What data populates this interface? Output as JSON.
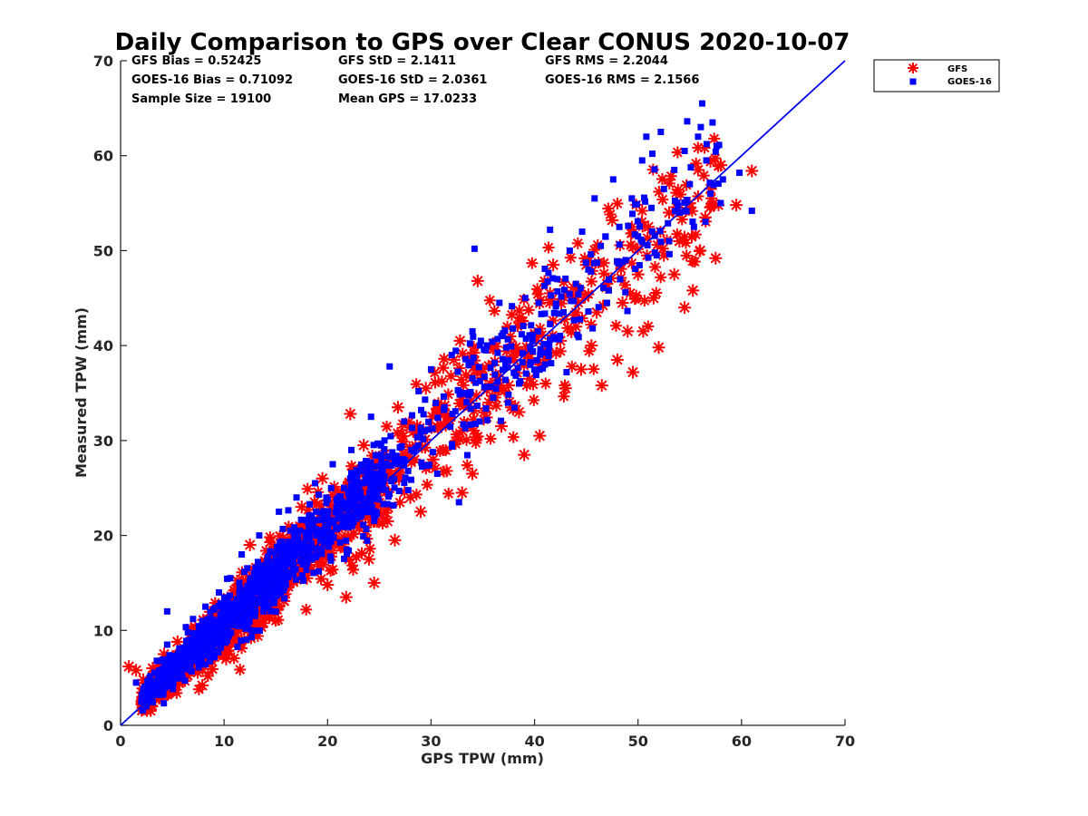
{
  "chart_data": {
    "type": "scatter",
    "title": "Daily Comparison to GPS over Clear CONUS 2020-10-07",
    "xlabel": "GPS TPW (mm)",
    "ylabel": "Measured TPW (mm)",
    "xlim": [
      0,
      70
    ],
    "ylim": [
      0,
      70
    ],
    "xticks": [
      "0",
      "10",
      "20",
      "30",
      "40",
      "50",
      "60",
      "70"
    ],
    "yticks": [
      "0",
      "10",
      "20",
      "30",
      "40",
      "50",
      "60",
      "70"
    ],
    "grid": false,
    "legend_position": "outside-top-right",
    "stats": {
      "gfs_bias": "GFS Bias = 0.52425",
      "goes_bias": "GOES-16 Bias = 0.71092",
      "sample_size": "Sample Size = 19100",
      "gfs_std": "GFS StD = 2.1411",
      "goes_std": "GOES-16 StD = 2.0361",
      "mean_gps": "Mean GPS = 17.0233",
      "gfs_rms": "GFS RMS = 2.2044",
      "goes_rms": "GOES-16 RMS = 2.1566"
    },
    "reference_line": {
      "name": "1:1 line",
      "x": [
        0,
        70
      ],
      "y": [
        0,
        70
      ],
      "color": "#0000ee"
    },
    "series": [
      {
        "name": "GFS",
        "marker": "asterisk",
        "color": "#ff0000",
        "points": [
          [
            0.8,
            6.2
          ],
          [
            1.5,
            5.8
          ],
          [
            2.2,
            4.8
          ],
          [
            2.5,
            3.2
          ],
          [
            3.1,
            6.0
          ],
          [
            3.8,
            4.1
          ],
          [
            4.2,
            7.5
          ],
          [
            5.0,
            5.2
          ],
          [
            5.5,
            8.8
          ],
          [
            6.1,
            6.8
          ],
          [
            6.8,
            10.2
          ],
          [
            7.2,
            8.0
          ],
          [
            7.9,
            4.2
          ],
          [
            8.5,
            9.1
          ],
          [
            9.0,
            11.5
          ],
          [
            9.8,
            10.0
          ],
          [
            10.2,
            7.0
          ],
          [
            10.5,
            12.8
          ],
          [
            11.0,
            14.2
          ],
          [
            11.8,
            10.8
          ],
          [
            12.5,
            19.0
          ],
          [
            12.8,
            15.0
          ],
          [
            13.5,
            12.2
          ],
          [
            14.0,
            16.8
          ],
          [
            14.6,
            14.0
          ],
          [
            15.2,
            18.5
          ],
          [
            15.8,
            13.1
          ],
          [
            16.5,
            20.5
          ],
          [
            17.0,
            17.2
          ],
          [
            17.5,
            23.0
          ],
          [
            18.0,
            15.5
          ],
          [
            18.6,
            21.0
          ],
          [
            19.0,
            18.2
          ],
          [
            19.5,
            26.0
          ],
          [
            20.0,
            14.8
          ],
          [
            20.5,
            22.5
          ],
          [
            21.0,
            24.5
          ],
          [
            21.5,
            19.5
          ],
          [
            21.8,
            13.5
          ],
          [
            22.2,
            32.8
          ],
          [
            22.5,
            27.0
          ],
          [
            23.0,
            21.8
          ],
          [
            23.5,
            29.5
          ],
          [
            24.0,
            17.5
          ],
          [
            24.5,
            15.0
          ],
          [
            25.0,
            26.5
          ],
          [
            25.8,
            21.5
          ],
          [
            26.5,
            19.5
          ],
          [
            26.8,
            33.5
          ],
          [
            27.5,
            28.5
          ],
          [
            28.0,
            24.0
          ],
          [
            28.6,
            31.0
          ],
          [
            29.0,
            22.5
          ],
          [
            29.5,
            35.5
          ],
          [
            30.2,
            28.0
          ],
          [
            30.8,
            33.5
          ],
          [
            31.5,
            26.8
          ],
          [
            32.2,
            38.5
          ],
          [
            32.8,
            40.5
          ],
          [
            33.0,
            24.5
          ],
          [
            33.5,
            31.5
          ],
          [
            34.0,
            26.5
          ],
          [
            34.5,
            46.8
          ],
          [
            35.0,
            37.5
          ],
          [
            35.6,
            34.0
          ],
          [
            36.0,
            40.2
          ],
          [
            36.8,
            31.5
          ],
          [
            37.5,
            35.8
          ],
          [
            38.0,
            38.5
          ],
          [
            38.5,
            33.0
          ],
          [
            39.0,
            28.5
          ],
          [
            39.5,
            36.5
          ],
          [
            40.0,
            41.0
          ],
          [
            40.5,
            30.5
          ],
          [
            41.0,
            38.5
          ],
          [
            41.5,
            45.5
          ],
          [
            41.8,
            48.5
          ],
          [
            42.5,
            40.5
          ],
          [
            43.0,
            35.5
          ],
          [
            43.5,
            45.5
          ],
          [
            44.0,
            42.0
          ],
          [
            44.5,
            37.5
          ],
          [
            45.0,
            48.5
          ],
          [
            45.5,
            40.0
          ],
          [
            46.0,
            43.5
          ],
          [
            46.5,
            35.8
          ],
          [
            47.0,
            46.5
          ],
          [
            47.5,
            53.2
          ],
          [
            48.0,
            38.5
          ],
          [
            48.5,
            44.5
          ],
          [
            49.0,
            41.5
          ],
          [
            49.5,
            37.2
          ],
          [
            50.0,
            47.5
          ],
          [
            50.5,
            41.5
          ],
          [
            51.0,
            52.5
          ],
          [
            51.5,
            45.0
          ],
          [
            52.0,
            39.8
          ],
          [
            52.5,
            49.5
          ],
          [
            53.0,
            54.0
          ],
          [
            53.5,
            47.5
          ],
          [
            54.0,
            51.0
          ],
          [
            54.5,
            44.0
          ],
          [
            55.0,
            55.0
          ],
          [
            55.3,
            45.8
          ],
          [
            55.8,
            58.5
          ],
          [
            56.0,
            50.0
          ],
          [
            56.5,
            53.5
          ],
          [
            57.0,
            56.5
          ],
          [
            57.5,
            49.2
          ],
          [
            58.0,
            59.0
          ],
          [
            59.5,
            54.8
          ],
          [
            61.0,
            58.4
          ]
        ]
      },
      {
        "name": "GOES-16",
        "marker": "square",
        "color": "#0000ff",
        "points": [
          [
            1.5,
            4.5
          ],
          [
            2.0,
            2.5
          ],
          [
            2.8,
            5.0
          ],
          [
            3.5,
            6.8
          ],
          [
            4.1,
            3.9
          ],
          [
            4.5,
            8.5
          ],
          [
            4.5,
            12.0
          ],
          [
            5.2,
            7.2
          ],
          [
            5.8,
            5.5
          ],
          [
            6.5,
            9.8
          ],
          [
            7.0,
            11.2
          ],
          [
            7.6,
            7.8
          ],
          [
            8.2,
            12.5
          ],
          [
            8.8,
            10.2
          ],
          [
            9.5,
            14.0
          ],
          [
            10.0,
            9.0
          ],
          [
            10.6,
            15.5
          ],
          [
            11.2,
            13.0
          ],
          [
            11.7,
            18.0
          ],
          [
            12.2,
            11.5
          ],
          [
            12.9,
            16.0
          ],
          [
            13.4,
            20.0
          ],
          [
            14.1,
            14.5
          ],
          [
            14.8,
            18.2
          ],
          [
            15.3,
            22.5
          ],
          [
            15.9,
            16.5
          ],
          [
            16.4,
            20.5
          ],
          [
            17.0,
            24.0
          ],
          [
            17.6,
            18.5
          ],
          [
            18.2,
            22.0
          ],
          [
            18.8,
            25.5
          ],
          [
            19.3,
            19.5
          ],
          [
            19.9,
            23.8
          ],
          [
            20.5,
            27.5
          ],
          [
            21.0,
            20.8
          ],
          [
            21.6,
            25.0
          ],
          [
            22.3,
            29.0
          ],
          [
            22.9,
            23.0
          ],
          [
            23.6,
            27.5
          ],
          [
            24.2,
            32.5
          ],
          [
            24.8,
            25.5
          ],
          [
            25.5,
            30.0
          ],
          [
            26.0,
            37.8
          ],
          [
            26.8,
            27.5
          ],
          [
            27.4,
            32.0
          ],
          [
            28.1,
            29.0
          ],
          [
            28.8,
            35.2
          ],
          [
            29.4,
            31.0
          ],
          [
            30.0,
            37.5
          ],
          [
            30.6,
            26.5
          ],
          [
            31.3,
            33.5
          ],
          [
            32.0,
            39.0
          ],
          [
            32.7,
            23.5
          ],
          [
            33.3,
            35.0
          ],
          [
            34.0,
            41.5
          ],
          [
            34.2,
            50.2
          ],
          [
            34.7,
            32.0
          ],
          [
            35.3,
            39.5
          ],
          [
            36.0,
            34.5
          ],
          [
            36.6,
            44.5
          ],
          [
            37.2,
            38.0
          ],
          [
            37.9,
            41.8
          ],
          [
            38.5,
            36.0
          ],
          [
            39.1,
            45.0
          ],
          [
            39.8,
            40.5
          ],
          [
            40.4,
            44.5
          ],
          [
            41.0,
            38.0
          ],
          [
            41.5,
            52.2
          ],
          [
            42.2,
            47.0
          ],
          [
            42.8,
            43.5
          ],
          [
            43.4,
            50.0
          ],
          [
            44.0,
            46.5
          ],
          [
            44.6,
            52.0
          ],
          [
            45.2,
            48.0
          ],
          [
            45.8,
            55.5
          ],
          [
            46.4,
            50.5
          ],
          [
            47.0,
            44.5
          ],
          [
            47.6,
            57.5
          ],
          [
            48.2,
            52.5
          ],
          [
            48.8,
            49.0
          ],
          [
            49.4,
            55.5
          ],
          [
            50.0,
            51.5
          ],
          [
            50.4,
            59.5
          ],
          [
            50.8,
            62.0
          ],
          [
            51.3,
            54.5
          ],
          [
            51.8,
            49.5
          ],
          [
            52.2,
            62.5
          ],
          [
            52.5,
            56.5
          ],
          [
            53.0,
            51.0
          ],
          [
            53.5,
            58.5
          ],
          [
            54.0,
            54.0
          ],
          [
            54.5,
            60.5
          ],
          [
            55.0,
            57.0
          ],
          [
            55.4,
            52.5
          ],
          [
            55.8,
            62.0
          ],
          [
            56.2,
            65.5
          ],
          [
            56.6,
            59.5
          ],
          [
            57.0,
            56.0
          ],
          [
            57.2,
            63.5
          ],
          [
            57.6,
            61.0
          ],
          [
            58.2,
            57.5
          ],
          [
            59.8,
            58.2
          ],
          [
            61.0,
            54.2
          ]
        ]
      }
    ]
  }
}
